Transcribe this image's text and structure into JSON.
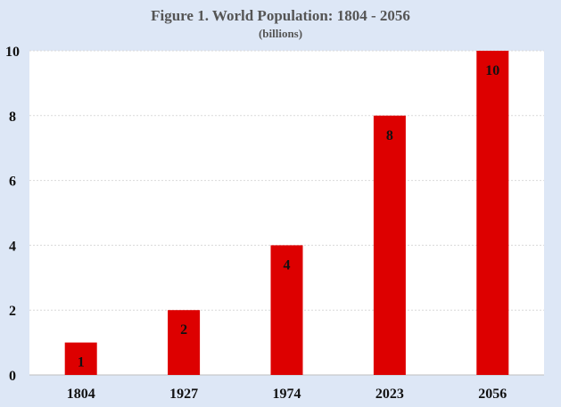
{
  "chart_data": {
    "type": "bar",
    "title": "Figure 1. World Population: 1804 - 2056",
    "subtitle": "(billions)",
    "categories": [
      "1804",
      "1927",
      "1974",
      "2023",
      "2056"
    ],
    "values": [
      1,
      2,
      4,
      8,
      10
    ],
    "data_labels": [
      "1",
      "2",
      "4",
      "8",
      "10"
    ],
    "xlabel": "",
    "ylabel": "",
    "ylim": [
      0,
      10
    ],
    "yticks": [
      0,
      2,
      4,
      6,
      8,
      10
    ],
    "grid": true,
    "legend": "none",
    "colors": {
      "bar": "#dd0000",
      "background": "#dde7f6",
      "plot": "#ffffff",
      "grid": "#d9d9d9",
      "title": "#555555"
    }
  }
}
